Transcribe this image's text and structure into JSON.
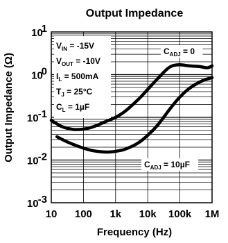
{
  "chart_data": {
    "type": "line",
    "title": "Output Impedance",
    "xlabel": "Frequency (Hz)",
    "ylabel": "Output Impedance (Ω)",
    "xscale": "log",
    "yscale": "log",
    "xlim": [
      10,
      1000000
    ],
    "ylim": [
      0.001,
      10
    ],
    "x_ticks": [
      "10",
      "100",
      "1k",
      "10k",
      "100k",
      "1M"
    ],
    "y_ticks": [
      "10-3",
      "10-2",
      "10-1",
      "100",
      "101"
    ],
    "y_tick_base": "10",
    "y_tick_exponents": [
      "-3",
      "-2",
      "-1",
      "0",
      "1"
    ],
    "grid": true,
    "conditions": [
      {
        "main": "V",
        "sub": "IN",
        "rest": " = -15V"
      },
      {
        "main": "V",
        "sub": "OUT",
        "rest": " = -10V"
      },
      {
        "main": "I",
        "sub": "L",
        "rest": " = 500mA"
      },
      {
        "main": "T",
        "sub": "J",
        "rest": " = 25°C"
      },
      {
        "main": "C",
        "sub": "L",
        "rest": " = 1µF"
      }
    ],
    "series": [
      {
        "label_main": "C",
        "label_sub": "ADJ",
        "label_rest": " = 0",
        "x": [
          10,
          20,
          30,
          50,
          100,
          200,
          500,
          1000,
          2000,
          5000,
          10000,
          20000,
          40000,
          60000,
          100000,
          200000,
          400000,
          700000,
          1000000
        ],
        "y": [
          0.085,
          0.062,
          0.056,
          0.052,
          0.053,
          0.06,
          0.08,
          0.1,
          0.14,
          0.26,
          0.45,
          0.8,
          1.35,
          1.62,
          1.7,
          1.6,
          1.55,
          1.45,
          1.6
        ]
      },
      {
        "label_main": "C",
        "label_sub": "ADJ",
        "label_rest": " = 10µF",
        "x": [
          15,
          30,
          50,
          100,
          200,
          400,
          700,
          1000,
          2000,
          5000,
          10000,
          20000,
          50000,
          100000,
          200000,
          500000,
          1000000
        ],
        "y": [
          0.035,
          0.027,
          0.023,
          0.019,
          0.0165,
          0.0155,
          0.0155,
          0.016,
          0.018,
          0.025,
          0.038,
          0.065,
          0.16,
          0.3,
          0.48,
          0.72,
          0.85
        ]
      }
    ]
  }
}
